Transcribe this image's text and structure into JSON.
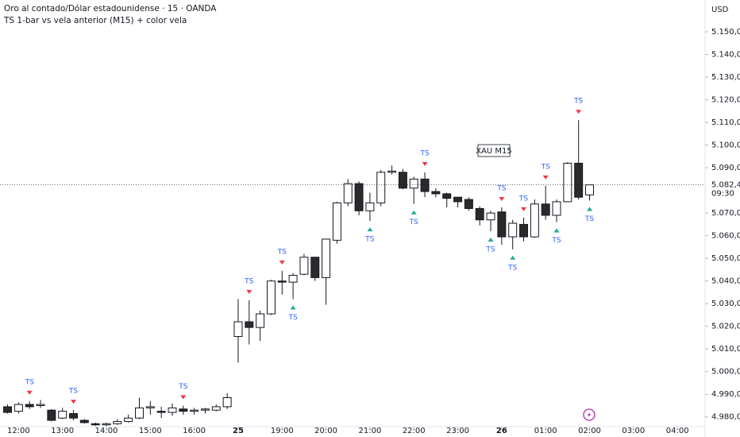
{
  "chart_data": {
    "type": "candlestick",
    "title": "Oro al contado/Dólar estadounidense · 15 · OANDA",
    "subtitle": "TS 1-bar vs vela anterior (M15) + color vela",
    "currency": "USD",
    "annotation": "XAU M15",
    "up_color": "#ffffff",
    "down_color": "#2a2a2a",
    "border_color": "#131722",
    "open": [
      4984.5,
      4982.5,
      4985.5,
      4985,
      4983,
      4979.5,
      4981.5,
      4978.5,
      4977,
      4976.5,
      4977,
      4978,
      4979.5,
      4984,
      4982.5,
      4982,
      4983.5,
      4982.5,
      4983,
      4983,
      4984.5,
      5015.5,
      5022,
      5019.5,
      5025.5,
      5040,
      5039.5,
      5043,
      5050.5,
      5041.5,
      5058,
      5074.5,
      5083,
      5071,
      5074.5,
      5088,
      5088,
      5081,
      5085,
      5079.5,
      5078.5,
      5077,
      5076,
      5072,
      5067,
      5070.5,
      5059.5,
      5065,
      5059.5,
      5074,
      5069,
      5075,
      5092,
      5078
    ],
    "high": [
      4985.5,
      4986.5,
      4987,
      4987.5,
      4983.5,
      4984,
      4983,
      4979,
      4977.5,
      4977.5,
      4979,
      4981,
      4988.5,
      4987,
      4984.5,
      4986,
      4985,
      4984,
      4984,
      4985.5,
      4990.5,
      5032,
      5031.5,
      5027,
      5040.5,
      5044.5,
      5043.5,
      5052,
      5050.5,
      5058.5,
      5075,
      5085,
      5084,
      5079,
      5089,
      5091,
      5089.5,
      5086,
      5088,
      5081,
      5079,
      5077,
      5077,
      5073,
      5071,
      5072.5,
      5067,
      5068,
      5076,
      5082,
      5076,
      5092.5,
      5111,
      5082.44
    ],
    "low": [
      4981.5,
      4981.5,
      4983.5,
      4984,
      4978,
      4979,
      4978.5,
      4977,
      4976,
      4976,
      4976.5,
      4977.5,
      4979,
      4981,
      4979.5,
      4980.5,
      4981,
      4981,
      4981.5,
      4982.5,
      4983.5,
      5004,
      5012,
      5013.5,
      5025,
      5034,
      5032,
      5042.5,
      5040,
      5029.5,
      5056.5,
      5073,
      5069,
      5066.5,
      5073,
      5087,
      5080.5,
      5074,
      5077,
      5077,
      5072.5,
      5072.5,
      5071,
      5064.5,
      5062,
      5056,
      5054,
      5057.5,
      5059,
      5067,
      5066,
      5075,
      5076,
      5075.5
    ],
    "close": [
      4982,
      4985.5,
      4984.5,
      4985.5,
      4978.5,
      4982.5,
      4979.5,
      4977.5,
      4976.5,
      4977,
      4978,
      4979.5,
      4984,
      4984.5,
      4982,
      4984,
      4982.5,
      4983,
      4983.5,
      4984.5,
      4988.5,
      5022,
      5019.5,
      5025.5,
      5040,
      5039.5,
      5042.5,
      5050.5,
      5041.5,
      5058.5,
      5074.5,
      5083,
      5071,
      5074.5,
      5088,
      5088.5,
      5081,
      5085,
      5079.5,
      5078.5,
      5076.5,
      5075,
      5072,
      5067,
      5070,
      5059.5,
      5065.5,
      5059.5,
      5074,
      5069,
      5075,
      5092,
      5077,
      5082.44
    ],
    "signals": [
      {
        "label": "TS",
        "color": "#f23645",
        "side": "above",
        "at": [
          2,
          6,
          16,
          22,
          25,
          38,
          45,
          47,
          49,
          52
        ]
      },
      {
        "label": "TS",
        "color": "#22ab94",
        "side": "below",
        "at": [
          26,
          33,
          37,
          44,
          46,
          50,
          53
        ]
      }
    ],
    "last_price": {
      "value": 5082.44,
      "label": "5.082,440"
    },
    "countdown": "09:30",
    "xlim": [
      -0.69,
      63.52
    ],
    "xticks": [
      {
        "value": 1,
        "label": "12:00"
      },
      {
        "value": 5,
        "label": "13:00"
      },
      {
        "value": 9,
        "label": "14:00"
      },
      {
        "value": 13,
        "label": "15:00"
      },
      {
        "value": 17,
        "label": "16:00"
      },
      {
        "value": 21,
        "label": "25"
      },
      {
        "value": 25,
        "label": "19:00"
      },
      {
        "value": 29,
        "label": "20:00"
      },
      {
        "value": 33,
        "label": "21:00"
      },
      {
        "value": 37,
        "label": "22:00"
      },
      {
        "value": 41,
        "label": "23:00"
      },
      {
        "value": 45,
        "label": "26"
      },
      {
        "value": 49,
        "label": "01:00"
      },
      {
        "value": 53,
        "label": "02:00"
      },
      {
        "value": 57,
        "label": "03:00"
      },
      {
        "value": 61,
        "label": "04:00"
      }
    ],
    "ylim": [
      4975.7,
      5164.05
    ],
    "yticks": [
      {
        "value": 5150,
        "label": "5.150,000"
      },
      {
        "value": 5140,
        "label": "5.140,000"
      },
      {
        "value": 5130,
        "label": "5.130,000"
      },
      {
        "value": 5120,
        "label": "5.120,000"
      },
      {
        "value": 5110,
        "label": "5.110,000"
      },
      {
        "value": 5100,
        "label": "5.100,000"
      },
      {
        "value": 5090,
        "label": "5.090,000"
      },
      {
        "value": 5080,
        "label": "5.080,000"
      },
      {
        "value": 5070,
        "label": "5.070,000"
      },
      {
        "value": 5060,
        "label": "5.060,000"
      },
      {
        "value": 5050,
        "label": "5.050,000"
      },
      {
        "value": 5040,
        "label": "5.040,000"
      },
      {
        "value": 5030,
        "label": "5.030,000"
      },
      {
        "value": 5020,
        "label": "5.020,000"
      },
      {
        "value": 5010,
        "label": "5.010,000"
      },
      {
        "value": 5000,
        "label": "5.000,000"
      },
      {
        "value": 4990,
        "label": "4.990,000"
      },
      {
        "value": 4980,
        "label": "4.980,000"
      }
    ],
    "grid": false
  }
}
